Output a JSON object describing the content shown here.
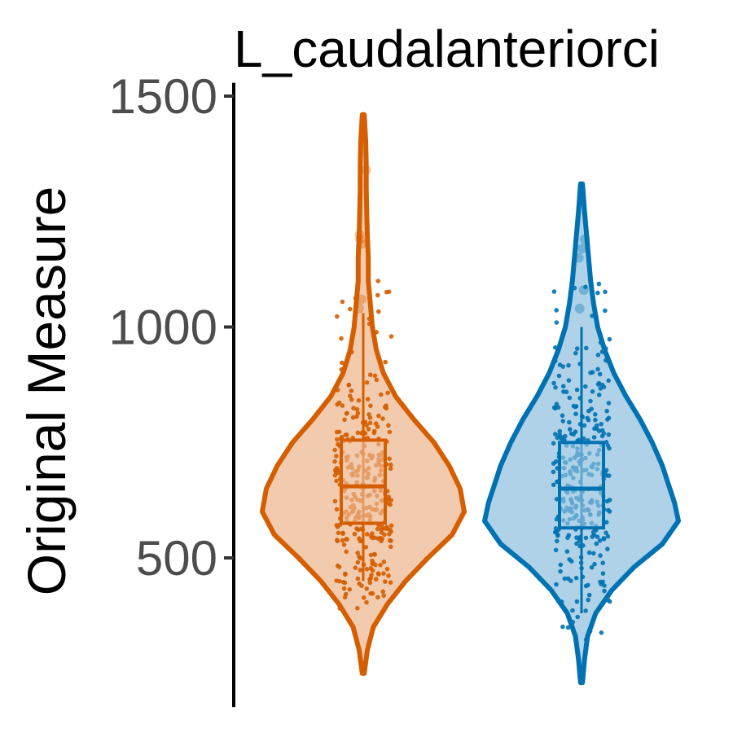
{
  "chart_data": {
    "type": "violin",
    "title": "L_caudalanteriorci",
    "ylabel": "Original Measure",
    "xlabel": "",
    "ylim": [
      230,
      1520
    ],
    "yticks": [
      500,
      1000,
      1500
    ],
    "grid": false,
    "legend": "none",
    "groups": [
      {
        "color": "#D55E00",
        "fill": "#F2CBAE",
        "range": [
          250,
          1460
        ],
        "box": {
          "q1": 575,
          "median": 655,
          "q3": 755,
          "whisker_low": 450,
          "whisker_high": 1030
        },
        "outliers": [
          1340,
          1200,
          1190,
          1180,
          1060,
          1040
        ],
        "density": [
          [
            250,
            0.01
          ],
          [
            300,
            0.04
          ],
          [
            350,
            0.1
          ],
          [
            400,
            0.24
          ],
          [
            450,
            0.42
          ],
          [
            500,
            0.64
          ],
          [
            550,
            0.88
          ],
          [
            600,
            1.0
          ],
          [
            650,
            0.96
          ],
          [
            700,
            0.85
          ],
          [
            750,
            0.7
          ],
          [
            800,
            0.5
          ],
          [
            850,
            0.32
          ],
          [
            900,
            0.2
          ],
          [
            950,
            0.13
          ],
          [
            1000,
            0.09
          ],
          [
            1050,
            0.07
          ],
          [
            1100,
            0.05
          ],
          [
            1150,
            0.05
          ],
          [
            1200,
            0.04
          ],
          [
            1250,
            0.035
          ],
          [
            1300,
            0.03
          ],
          [
            1350,
            0.03
          ],
          [
            1400,
            0.025
          ],
          [
            1460,
            0.01
          ]
        ]
      },
      {
        "color": "#0072B2",
        "fill": "#AFD2E8",
        "range": [
          230,
          1310
        ],
        "box": {
          "q1": 565,
          "median": 650,
          "q3": 750,
          "whisker_low": 380,
          "whisker_high": 1000
        },
        "outliers": [
          1190,
          1170,
          1150,
          1080,
          1040
        ],
        "density": [
          [
            230,
            0.01
          ],
          [
            280,
            0.03
          ],
          [
            330,
            0.06
          ],
          [
            380,
            0.14
          ],
          [
            430,
            0.3
          ],
          [
            480,
            0.52
          ],
          [
            530,
            0.8
          ],
          [
            580,
            0.96
          ],
          [
            620,
            0.92
          ],
          [
            660,
            0.86
          ],
          [
            700,
            0.8
          ],
          [
            750,
            0.7
          ],
          [
            800,
            0.58
          ],
          [
            850,
            0.44
          ],
          [
            900,
            0.32
          ],
          [
            950,
            0.23
          ],
          [
            1000,
            0.16
          ],
          [
            1050,
            0.12
          ],
          [
            1100,
            0.09
          ],
          [
            1150,
            0.07
          ],
          [
            1200,
            0.05
          ],
          [
            1250,
            0.03
          ],
          [
            1310,
            0.01
          ]
        ]
      }
    ]
  }
}
